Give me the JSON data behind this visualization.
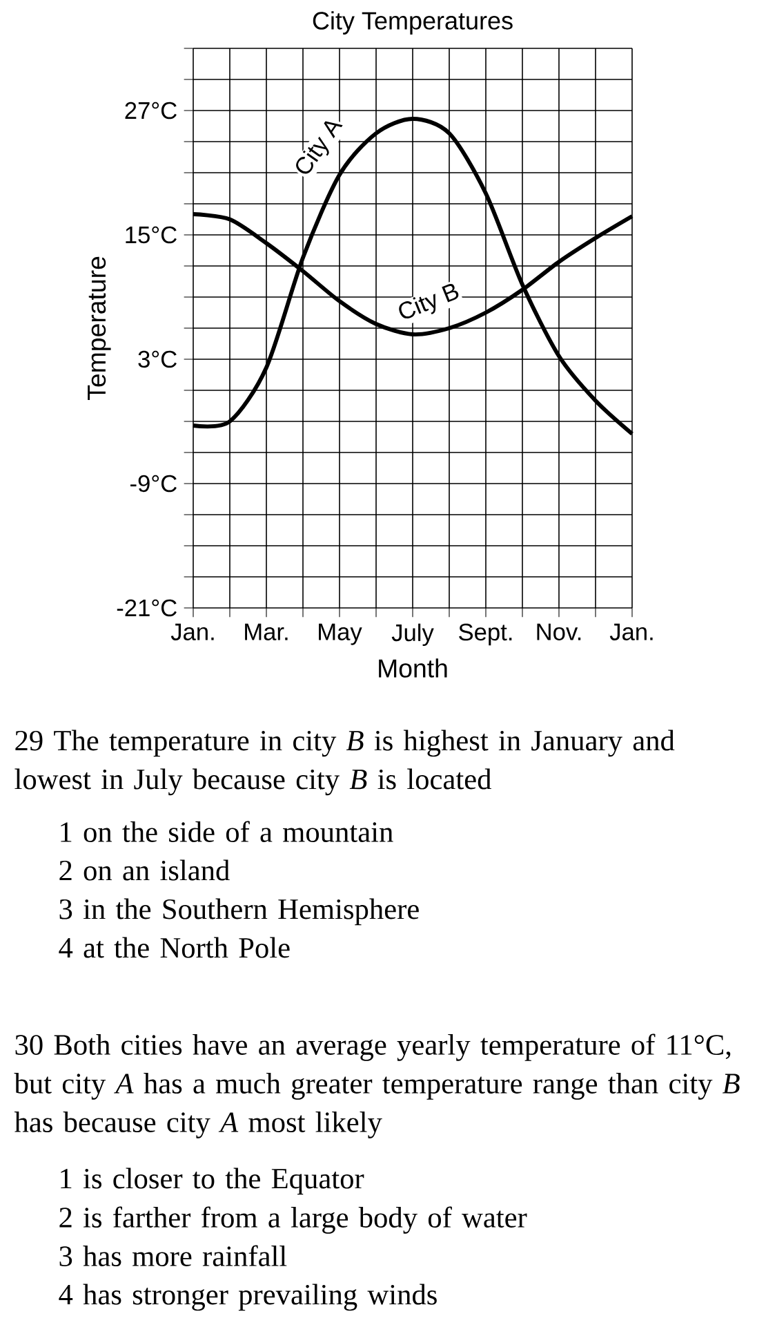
{
  "chart_data": {
    "type": "line",
    "title": "City Temperatures",
    "xlabel": "Month",
    "ylabel": "Temperature",
    "categories": [
      "Jan.",
      null,
      "Mar.",
      null,
      "May",
      null,
      "July",
      null,
      "Sept.",
      null,
      "Nov.",
      null,
      "Jan."
    ],
    "series": [
      {
        "name": "City A",
        "color": "#000000",
        "values": [
          -3.4,
          -3,
          2.2,
          12.8,
          20.8,
          24.8,
          26.2,
          24.8,
          19,
          10.2,
          3.3,
          -1,
          -4.2
        ]
      },
      {
        "name": "City B",
        "color": "#000000",
        "values": [
          17,
          16.5,
          14.2,
          11.5,
          8.6,
          6.4,
          5.4,
          6,
          7.5,
          9.7,
          12.4,
          14.7,
          16.8
        ]
      }
    ],
    "ylim": [
      -21,
      33
    ],
    "yticks": [
      {
        "value": -21,
        "label": "-21°C"
      },
      {
        "value": -18,
        "label": null
      },
      {
        "value": -15,
        "label": null
      },
      {
        "value": -12,
        "label": null
      },
      {
        "value": -9,
        "label": "-9°C"
      },
      {
        "value": -6,
        "label": null
      },
      {
        "value": -3,
        "label": null
      },
      {
        "value": 0,
        "label": null
      },
      {
        "value": 3,
        "label": "3°C"
      },
      {
        "value": 6,
        "label": null
      },
      {
        "value": 9,
        "label": null
      },
      {
        "value": 12,
        "label": null
      },
      {
        "value": 15,
        "label": "15°C"
      },
      {
        "value": 18,
        "label": null
      },
      {
        "value": 21,
        "label": null
      },
      {
        "value": 24,
        "label": null
      },
      {
        "value": 27,
        "label": "27°C"
      },
      {
        "value": 30,
        "label": null
      },
      {
        "value": 33,
        "label": null
      }
    ],
    "grid": true,
    "marker": "none",
    "line_style": "solid",
    "annotations": [
      "29 The temperature in city *B* is highest in January and lowest in July because city *B* is located",
      "1 on the side of a mountain",
      "2 on an island",
      "3 in the Southern Hemisphere",
      "4 at the North Pole",
      "30 Both cities have an average yearly temperature of 11°C, but city *A* has a much greater temperature range than city *B* has because city *A* most likely",
      "1 is closer to the Equator",
      "2 is farther from a large body of water",
      "3 has more rainfall",
      "4 has stronger prevailing winds"
    ]
  }
}
